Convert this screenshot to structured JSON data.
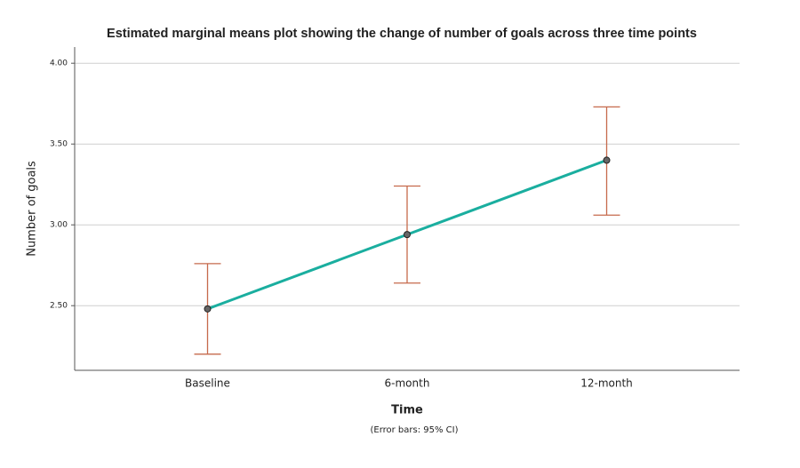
{
  "chart_data": {
    "type": "line",
    "title": "Estimated marginal means plot showing the change of number of goals across three time points",
    "x_label": "Time",
    "y_label": "Number of goals",
    "note": "(Error bars: 95% CI)",
    "categories": [
      "Baseline",
      "6-month",
      "12-month"
    ],
    "series": [
      {
        "name": "Number of goals",
        "color": "#1aae9f",
        "error_color": "#c66a4c",
        "values": [
          2.48,
          2.94,
          3.4
        ],
        "ci_lower": [
          2.2,
          2.64,
          3.06
        ],
        "ci_upper": [
          2.76,
          3.24,
          3.73
        ]
      }
    ],
    "ylim": [
      2.1,
      4.1
    ],
    "yticks": [
      {
        "value": 2.5,
        "label": "2.50"
      },
      {
        "value": 3,
        "label": "3.00"
      },
      {
        "value": 3.5,
        "label": "3.50"
      },
      {
        "value": 4,
        "label": "4.00"
      }
    ],
    "grid": true
  }
}
